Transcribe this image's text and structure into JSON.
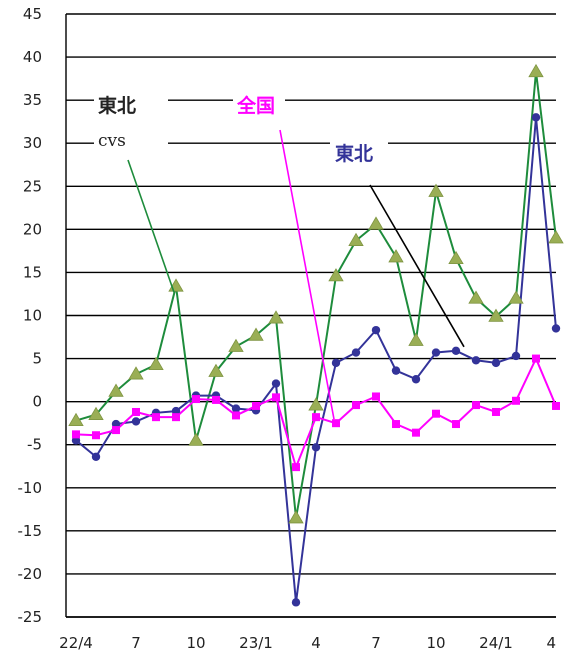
{
  "chart_data": {
    "type": "line",
    "title": "",
    "xlabel": "",
    "ylabel": "",
    "ylim": [
      -25,
      45
    ],
    "yticks": [
      45,
      40,
      35,
      30,
      25,
      20,
      15,
      10,
      5,
      0,
      -5,
      -10,
      -15,
      -20,
      -25
    ],
    "grid": true,
    "x_tick_labels": [
      "22/4",
      "7",
      "10",
      "23/1",
      "4",
      "7",
      "10",
      "24/1",
      "4"
    ],
    "x_tick_index": [
      0,
      3,
      6,
      9,
      12,
      15,
      18,
      21,
      24
    ],
    "series": [
      {
        "name": "東北cvs",
        "color": "#1e8c3c",
        "marker": "triangle",
        "marker_color": "#9aae55",
        "values": [
          -2.2,
          -1.5,
          1.2,
          3.2,
          4.3,
          13.4,
          -4.5,
          3.5,
          6.4,
          7.7,
          9.7,
          -13.5,
          -0.4,
          14.6,
          18.7,
          20.6,
          16.8,
          7.1,
          24.4,
          16.6,
          12.0,
          9.9,
          12.0,
          38.3,
          19.0
        ]
      },
      {
        "name": "東北",
        "color": "#333399",
        "marker": "circle",
        "marker_color": "#333399",
        "values": [
          -4.5,
          -6.4,
          -2.6,
          -2.3,
          -1.3,
          -1.1,
          0.7,
          0.7,
          -0.8,
          -1.0,
          2.1,
          -23.3,
          -5.3,
          4.5,
          5.7,
          8.3,
          3.6,
          2.6,
          5.7,
          5.9,
          4.8,
          4.5,
          5.3,
          33.0,
          8.5
        ]
      },
      {
        "name": "全国",
        "color": "#ff00ff",
        "marker": "square",
        "marker_color": "#ff00ff",
        "values": [
          -3.8,
          -3.9,
          -3.3,
          -1.2,
          -1.8,
          -1.8,
          0.3,
          0.2,
          -1.6,
          -0.5,
          0.5,
          -7.6,
          -1.8,
          -2.5,
          -0.4,
          0.6,
          -2.6,
          -3.6,
          -1.4,
          -2.6,
          -0.4,
          -1.2,
          0.1,
          5.0,
          -0.5
        ]
      }
    ],
    "annotations": [
      {
        "text_lines": [
          "東北",
          "cvs"
        ],
        "color": "#222222",
        "series": "東北cvs"
      },
      {
        "text_lines": [
          "全国"
        ],
        "color": "#ff00ff",
        "series": "全国"
      },
      {
        "text_lines": [
          "東北"
        ],
        "color": "#333399",
        "series": "東北"
      }
    ]
  }
}
